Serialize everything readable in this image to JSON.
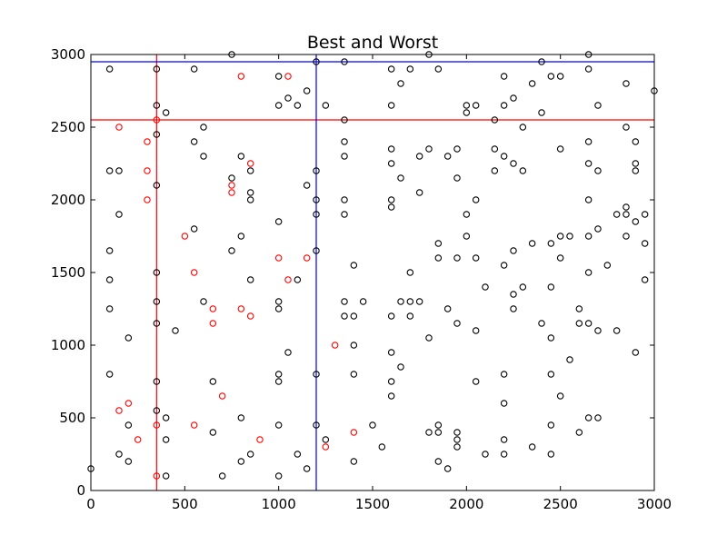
{
  "chart_data": {
    "type": "scatter",
    "title": "Best and Worst",
    "xlabel": "",
    "ylabel": "",
    "xlim": [
      0,
      3000
    ],
    "ylim": [
      0,
      3000
    ],
    "x_ticks": [
      0,
      500,
      1000,
      1500,
      2000,
      2500,
      3000
    ],
    "y_ticks": [
      0,
      500,
      1000,
      1500,
      2000,
      2500,
      3000
    ],
    "grid": false,
    "colors": {
      "black": "#000000",
      "red": "#ff0000",
      "blue": "#0000ff"
    },
    "series": [
      {
        "color": "#000000",
        "points": [
          [
            0,
            150
          ],
          [
            100,
            2900
          ],
          [
            100,
            2200
          ],
          [
            100,
            1650
          ],
          [
            100,
            1450
          ],
          [
            100,
            1250
          ],
          [
            100,
            800
          ],
          [
            150,
            2200
          ],
          [
            150,
            1900
          ],
          [
            150,
            250
          ],
          [
            200,
            1050
          ],
          [
            200,
            450
          ],
          [
            200,
            200
          ],
          [
            350,
            2900
          ],
          [
            350,
            2650
          ],
          [
            350,
            2450
          ],
          [
            350,
            2100
          ],
          [
            350,
            1500
          ],
          [
            350,
            1300
          ],
          [
            350,
            1150
          ],
          [
            350,
            750
          ],
          [
            350,
            550
          ],
          [
            400,
            2600
          ],
          [
            400,
            500
          ],
          [
            400,
            350
          ],
          [
            400,
            100
          ],
          [
            450,
            1100
          ],
          [
            550,
            2900
          ],
          [
            550,
            2400
          ],
          [
            550,
            1800
          ],
          [
            600,
            2500
          ],
          [
            600,
            2300
          ],
          [
            600,
            1300
          ],
          [
            650,
            750
          ],
          [
            650,
            400
          ],
          [
            700,
            100
          ],
          [
            750,
            3000
          ],
          [
            750,
            2150
          ],
          [
            750,
            1650
          ],
          [
            800,
            2300
          ],
          [
            800,
            1750
          ],
          [
            800,
            500
          ],
          [
            800,
            200
          ],
          [
            850,
            2200
          ],
          [
            850,
            2050
          ],
          [
            850,
            2000
          ],
          [
            850,
            1450
          ],
          [
            850,
            250
          ],
          [
            1000,
            2850
          ],
          [
            1000,
            2650
          ],
          [
            1000,
            1850
          ],
          [
            1000,
            1300
          ],
          [
            1000,
            1250
          ],
          [
            1000,
            800
          ],
          [
            1000,
            750
          ],
          [
            1000,
            450
          ],
          [
            1000,
            100
          ],
          [
            1050,
            2700
          ],
          [
            1050,
            950
          ],
          [
            1100,
            2650
          ],
          [
            1100,
            1450
          ],
          [
            1100,
            250
          ],
          [
            1150,
            2750
          ],
          [
            1150,
            2100
          ],
          [
            1150,
            150
          ],
          [
            1200,
            2950
          ],
          [
            1200,
            2200
          ],
          [
            1200,
            2000
          ],
          [
            1200,
            1900
          ],
          [
            1200,
            1650
          ],
          [
            1200,
            800
          ],
          [
            1200,
            450
          ],
          [
            1250,
            2650
          ],
          [
            1250,
            350
          ],
          [
            1350,
            2950
          ],
          [
            1350,
            2550
          ],
          [
            1350,
            2400
          ],
          [
            1350,
            2300
          ],
          [
            1350,
            2000
          ],
          [
            1350,
            1900
          ],
          [
            1350,
            1300
          ],
          [
            1350,
            1200
          ],
          [
            1400,
            1550
          ],
          [
            1400,
            1200
          ],
          [
            1400,
            1000
          ],
          [
            1400,
            800
          ],
          [
            1400,
            200
          ],
          [
            1450,
            1300
          ],
          [
            1500,
            450
          ],
          [
            1550,
            300
          ],
          [
            1600,
            2900
          ],
          [
            1600,
            2650
          ],
          [
            1600,
            2350
          ],
          [
            1600,
            2250
          ],
          [
            1600,
            2000
          ],
          [
            1600,
            1950
          ],
          [
            1600,
            1200
          ],
          [
            1600,
            950
          ],
          [
            1600,
            750
          ],
          [
            1600,
            650
          ],
          [
            1650,
            2800
          ],
          [
            1650,
            2150
          ],
          [
            1650,
            1300
          ],
          [
            1650,
            850
          ],
          [
            1700,
            2900
          ],
          [
            1700,
            1500
          ],
          [
            1700,
            1300
          ],
          [
            1700,
            1200
          ],
          [
            1750,
            2300
          ],
          [
            1750,
            2050
          ],
          [
            1750,
            1300
          ],
          [
            1800,
            3000
          ],
          [
            1800,
            2350
          ],
          [
            1800,
            1050
          ],
          [
            1800,
            400
          ],
          [
            1850,
            2900
          ],
          [
            1850,
            1700
          ],
          [
            1850,
            1600
          ],
          [
            1850,
            450
          ],
          [
            1850,
            400
          ],
          [
            1850,
            200
          ],
          [
            1900,
            2300
          ],
          [
            1900,
            1250
          ],
          [
            1900,
            150
          ],
          [
            1950,
            2350
          ],
          [
            1950,
            2150
          ],
          [
            1950,
            1600
          ],
          [
            1950,
            1150
          ],
          [
            1950,
            400
          ],
          [
            1950,
            350
          ],
          [
            1950,
            300
          ],
          [
            2000,
            2650
          ],
          [
            2000,
            2600
          ],
          [
            2000,
            1900
          ],
          [
            2000,
            1750
          ],
          [
            2050,
            2650
          ],
          [
            2050,
            2000
          ],
          [
            2050,
            1600
          ],
          [
            2050,
            1100
          ],
          [
            2050,
            750
          ],
          [
            2100,
            1400
          ],
          [
            2100,
            250
          ],
          [
            2150,
            2550
          ],
          [
            2150,
            2350
          ],
          [
            2150,
            2200
          ],
          [
            2200,
            2850
          ],
          [
            2200,
            2650
          ],
          [
            2200,
            2300
          ],
          [
            2200,
            1550
          ],
          [
            2200,
            800
          ],
          [
            2200,
            600
          ],
          [
            2200,
            350
          ],
          [
            2200,
            250
          ],
          [
            2250,
            2700
          ],
          [
            2250,
            2250
          ],
          [
            2250,
            1650
          ],
          [
            2250,
            1350
          ],
          [
            2250,
            1250
          ],
          [
            2300,
            2500
          ],
          [
            2300,
            2200
          ],
          [
            2300,
            1400
          ],
          [
            2350,
            2800
          ],
          [
            2350,
            1700
          ],
          [
            2350,
            300
          ],
          [
            2400,
            2950
          ],
          [
            2400,
            2600
          ],
          [
            2400,
            1150
          ],
          [
            2450,
            2850
          ],
          [
            2450,
            1700
          ],
          [
            2450,
            1400
          ],
          [
            2450,
            1050
          ],
          [
            2450,
            800
          ],
          [
            2450,
            450
          ],
          [
            2450,
            250
          ],
          [
            2500,
            2850
          ],
          [
            2500,
            2350
          ],
          [
            2500,
            1750
          ],
          [
            2500,
            1600
          ],
          [
            2500,
            650
          ],
          [
            2550,
            1750
          ],
          [
            2550,
            900
          ],
          [
            2600,
            1250
          ],
          [
            2600,
            1150
          ],
          [
            2600,
            400
          ],
          [
            2650,
            3000
          ],
          [
            2650,
            2900
          ],
          [
            2650,
            2400
          ],
          [
            2650,
            2250
          ],
          [
            2650,
            2000
          ],
          [
            2650,
            1750
          ],
          [
            2650,
            1500
          ],
          [
            2650,
            1150
          ],
          [
            2650,
            500
          ],
          [
            2700,
            2650
          ],
          [
            2700,
            2200
          ],
          [
            2700,
            1800
          ],
          [
            2700,
            1100
          ],
          [
            2700,
            500
          ],
          [
            2750,
            1550
          ],
          [
            2800,
            1900
          ],
          [
            2800,
            1100
          ],
          [
            2850,
            2800
          ],
          [
            2850,
            2500
          ],
          [
            2850,
            1950
          ],
          [
            2850,
            1900
          ],
          [
            2850,
            1750
          ],
          [
            2900,
            2400
          ],
          [
            2900,
            2250
          ],
          [
            2900,
            2200
          ],
          [
            2900,
            1850
          ],
          [
            2900,
            950
          ],
          [
            2950,
            1900
          ],
          [
            2950,
            1700
          ],
          [
            2950,
            1450
          ],
          [
            3000,
            2750
          ]
        ]
      },
      {
        "color": "#ff0000",
        "points": [
          [
            150,
            2500
          ],
          [
            150,
            550
          ],
          [
            200,
            600
          ],
          [
            250,
            350
          ],
          [
            300,
            2400
          ],
          [
            300,
            2200
          ],
          [
            300,
            2000
          ],
          [
            350,
            2550
          ],
          [
            350,
            450
          ],
          [
            350,
            100
          ],
          [
            500,
            1750
          ],
          [
            550,
            1500
          ],
          [
            550,
            450
          ],
          [
            650,
            1250
          ],
          [
            650,
            1150
          ],
          [
            700,
            650
          ],
          [
            750,
            2100
          ],
          [
            750,
            2050
          ],
          [
            800,
            2850
          ],
          [
            800,
            1250
          ],
          [
            850,
            2250
          ],
          [
            850,
            1200
          ],
          [
            900,
            350
          ],
          [
            1000,
            1600
          ],
          [
            1050,
            2850
          ],
          [
            1050,
            1450
          ],
          [
            1150,
            1600
          ],
          [
            1250,
            300
          ],
          [
            1300,
            1000
          ],
          [
            1400,
            400
          ]
        ]
      }
    ],
    "reference_lines": [
      {
        "orientation": "vertical",
        "x": 350,
        "color": "#ff0000"
      },
      {
        "orientation": "horizontal",
        "y": 2550,
        "color": "#ff0000"
      },
      {
        "orientation": "vertical",
        "x": 1200,
        "color": "#0000ff"
      },
      {
        "orientation": "horizontal",
        "y": 2950,
        "color": "#0000ff"
      }
    ]
  }
}
